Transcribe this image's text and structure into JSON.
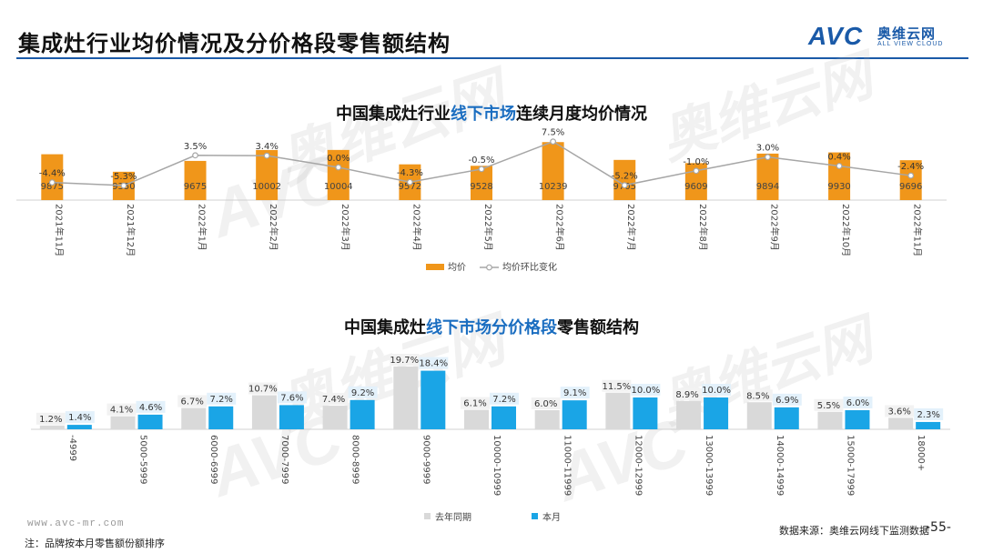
{
  "page": {
    "title": "集成灶行业均价情况及分价格段零售额结构",
    "logo_avc": "AVC",
    "logo_cn": "奥维云网",
    "logo_en": "ALL VIEW CLOUD",
    "watermark_cn": "奥维云网",
    "watermark_en": "ALL VIEW CLOUD",
    "watermark_avc": "AVC",
    "footer_url": "www.avc-mr.com",
    "footer_note": "注：品牌按本月零售额份额排序",
    "footer_source": "数据来源：奥维云网线下监测数据",
    "page_number": "-55-",
    "colors": {
      "brand": "#1a5aa8",
      "orange": "#f0961a",
      "blue": "#1aa5e6",
      "grey_bar": "#d9d9d9",
      "line": "#a6a6a6"
    }
  },
  "chart_data": [
    {
      "type": "bar",
      "title_parts": [
        "中国集成灶行业",
        "线下市场",
        "连续月度均价情况"
      ],
      "categories": [
        "2021年11月",
        "2021年12月",
        "2022年1月",
        "2022年2月",
        "2022年3月",
        "2022年4月",
        "2022年5月",
        "2022年6月",
        "2022年7月",
        "2022年8月",
        "2022年9月",
        "2022年10月",
        "2022年11月"
      ],
      "series": [
        {
          "name": "均价",
          "type": "bar",
          "values": [
            9875,
            9350,
            9675,
            10002,
            10004,
            9572,
            9528,
            10239,
            9705,
            9609,
            9894,
            9930,
            9696
          ]
        },
        {
          "name": "均价环比变化",
          "type": "line",
          "values": [
            -4.4,
            -5.3,
            3.5,
            3.4,
            0.0,
            -4.3,
            -0.5,
            7.5,
            -5.2,
            -1.0,
            3.0,
            0.4,
            -2.4
          ]
        }
      ],
      "line_labels": [
        "-4.4%",
        "-5.3%",
        "3.5%",
        "3.4%",
        "0.0%",
        "-4.3%",
        "-0.5%",
        "7.5%",
        "-5.2%",
        "-1.0%",
        "3.0%",
        "0.4%",
        "-2.4%"
      ],
      "bar_labels": [
        "9875",
        "9350",
        "9675",
        "10002",
        "10004",
        "9572",
        "9528",
        "10239",
        "9705",
        "9609",
        "9894",
        "9930",
        "9696"
      ],
      "ylim": [
        8500,
        10300
      ],
      "y2lim": [
        -9,
        9
      ],
      "legend": [
        "均价",
        "均价环比变化"
      ]
    },
    {
      "type": "bar",
      "title_parts": [
        "中国集成灶",
        "线下市场分价格段",
        "零售额结构"
      ],
      "categories": [
        "-4999",
        "5000-5999",
        "6000-6999",
        "7000-7999",
        "8000-8999",
        "9000-9999",
        "10000-10999",
        "11000-11999",
        "12000-12999",
        "13000-13999",
        "14000-14999",
        "15000-17999",
        "18000+"
      ],
      "series": [
        {
          "name": "去年同期",
          "values": [
            1.2,
            4.1,
            6.7,
            10.7,
            7.4,
            19.7,
            6.1,
            6.0,
            11.5,
            8.9,
            8.5,
            5.5,
            3.6
          ]
        },
        {
          "name": "本月",
          "values": [
            1.4,
            4.6,
            7.2,
            7.6,
            9.2,
            18.4,
            7.2,
            9.1,
            10.0,
            10.0,
            6.9,
            6.0,
            2.3
          ]
        }
      ],
      "labels_prev": [
        "1.2%",
        "4.1%",
        "6.7%",
        "10.7%",
        "7.4%",
        "19.7%",
        "6.1%",
        "6.0%",
        "11.5%",
        "8.9%",
        "8.5%",
        "5.5%",
        "3.6%"
      ],
      "labels_curr": [
        "1.4%",
        "4.6%",
        "7.2%",
        "7.6%",
        "9.2%",
        "18.4%",
        "7.2%",
        "9.1%",
        "10.0%",
        "10.0%",
        "6.9%",
        "6.0%",
        "2.3%"
      ],
      "ylim": [
        0,
        20
      ],
      "legend": [
        "去年同期",
        "本月"
      ]
    }
  ]
}
